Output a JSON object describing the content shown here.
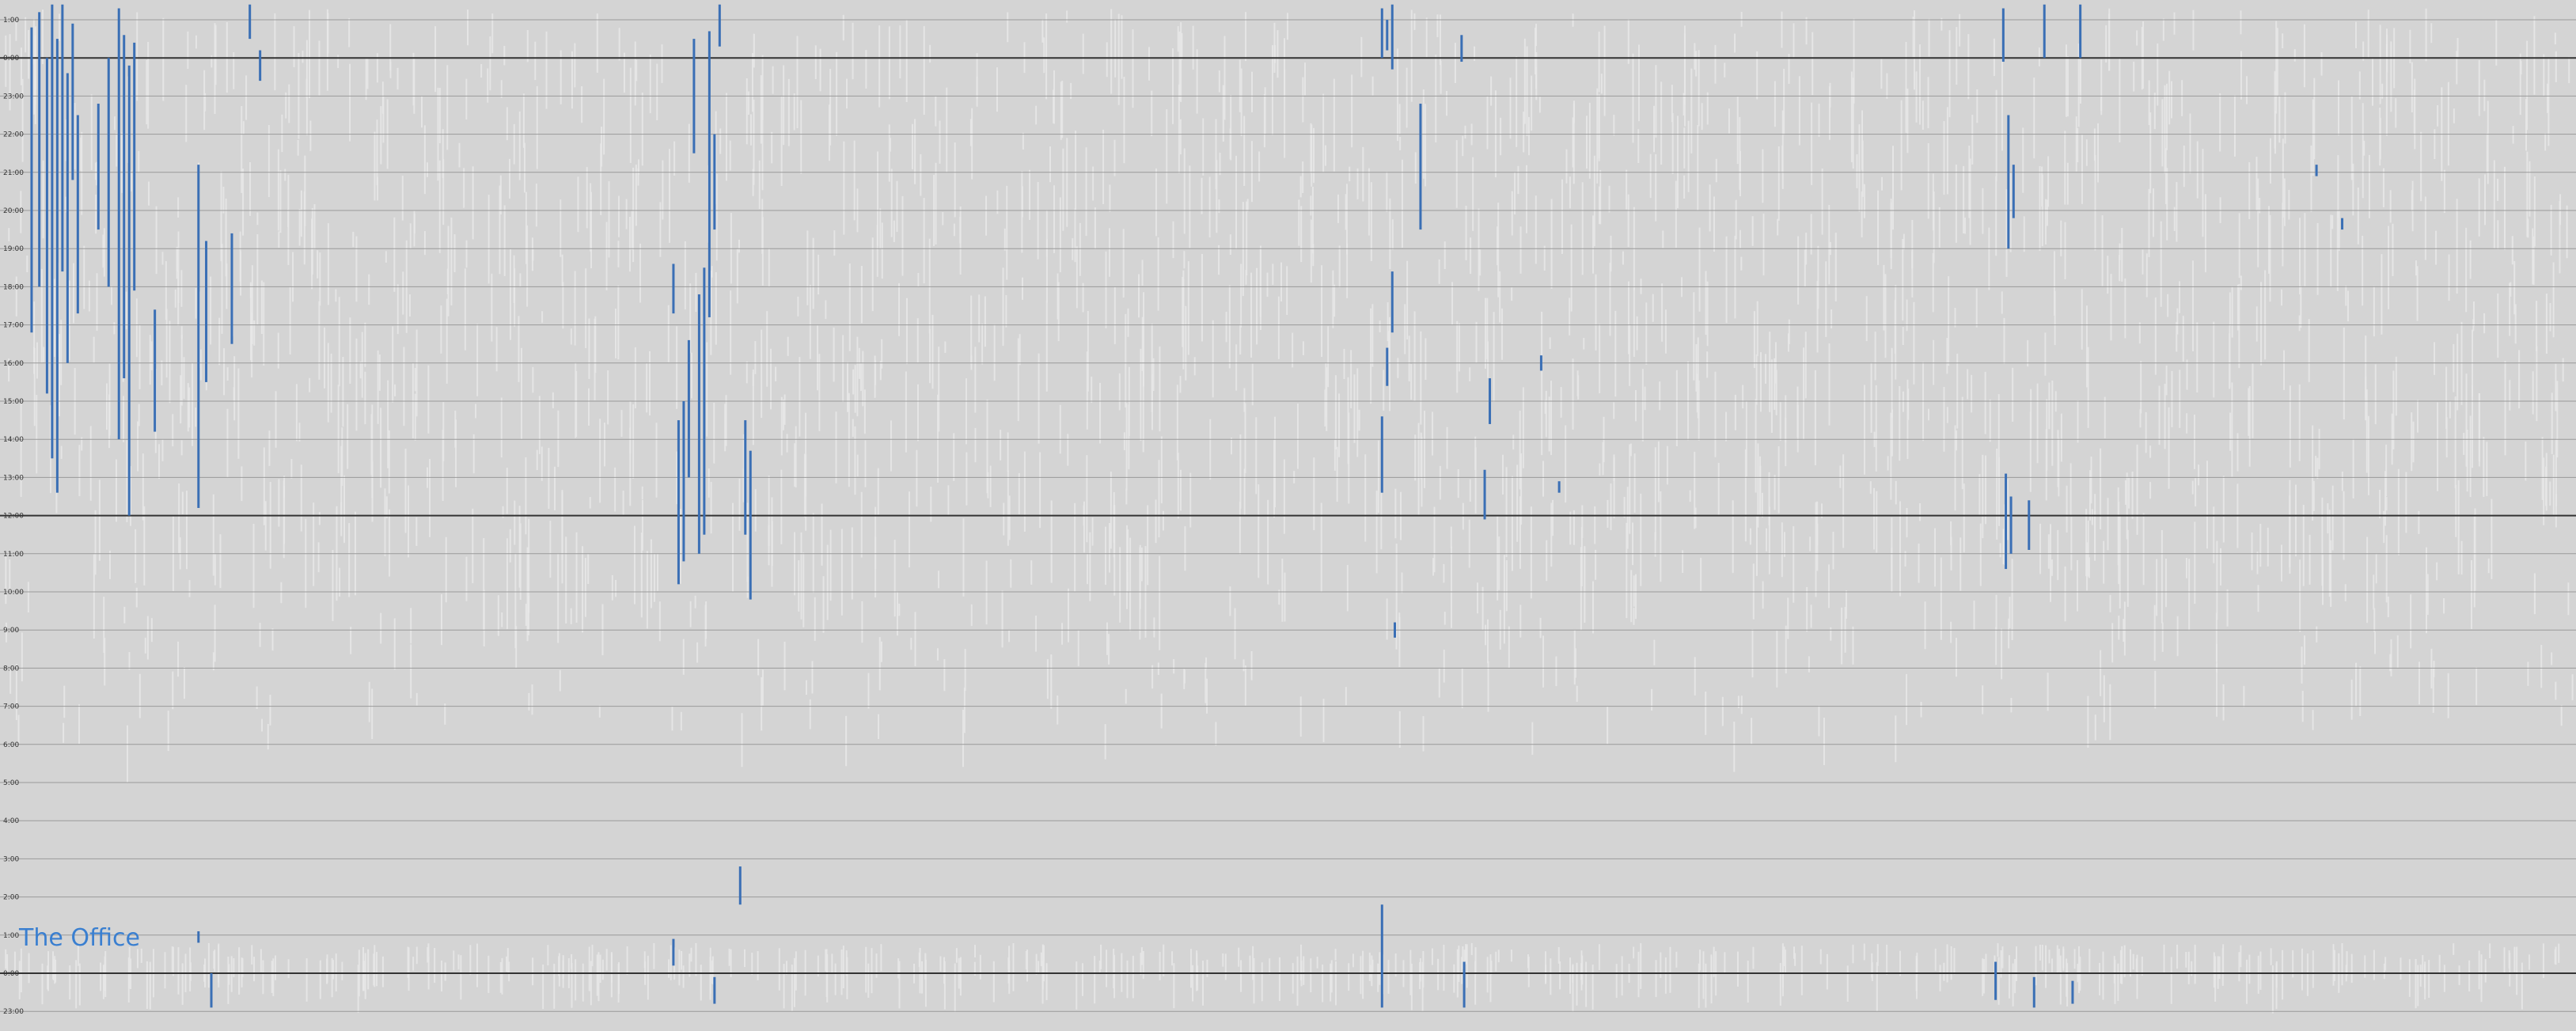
{
  "chart_data": {
    "type": "scatter",
    "title": "The Office",
    "xlabel": "",
    "ylabel": "",
    "ylim": [
      -1,
      26
    ],
    "y_ticks": [
      {
        "value": 25,
        "label": "1:00"
      },
      {
        "value": 24,
        "label": "0:00"
      },
      {
        "value": 23,
        "label": "23:00"
      },
      {
        "value": 22,
        "label": "22:00"
      },
      {
        "value": 21,
        "label": "21:00"
      },
      {
        "value": 20,
        "label": "20:00"
      },
      {
        "value": 19,
        "label": "19:00"
      },
      {
        "value": 18,
        "label": "18:00"
      },
      {
        "value": 17,
        "label": "17:00"
      },
      {
        "value": 16,
        "label": "16:00"
      },
      {
        "value": 15,
        "label": "15:00"
      },
      {
        "value": 14,
        "label": "14:00"
      },
      {
        "value": 13,
        "label": "13:00"
      },
      {
        "value": 12,
        "label": "12:00"
      },
      {
        "value": 11,
        "label": "11:00"
      },
      {
        "value": 10,
        "label": "10:00"
      },
      {
        "value": 9,
        "label": "9:00"
      },
      {
        "value": 8,
        "label": "8:00"
      },
      {
        "value": 7,
        "label": "7:00"
      },
      {
        "value": 6,
        "label": "6:00"
      },
      {
        "value": 5,
        "label": "5:00"
      },
      {
        "value": 4,
        "label": "4:00"
      },
      {
        "value": 3,
        "label": "3:00"
      },
      {
        "value": 2,
        "label": "2:00"
      },
      {
        "value": 1,
        "label": "1:00"
      },
      {
        "value": 0,
        "label": "0:00"
      },
      {
        "value": -1,
        "label": "23:00"
      }
    ],
    "major_lines": [
      24,
      12,
      0
    ],
    "grid": true,
    "colors": {
      "background": "#d4d4d4",
      "gridline": "#9a9a9a",
      "major": "#333333",
      "other": "#e8e8e8",
      "highlight": "#3a6fb5",
      "title": "#3a7fd0"
    },
    "series": [
      {
        "name": "The Office",
        "color": "#3a6fb5",
        "spans": [
          {
            "x": 0.01,
            "y1": 24.8,
            "y2": 16.8
          },
          {
            "x": 0.013,
            "y1": 25.2,
            "y2": 18.0
          },
          {
            "x": 0.016,
            "y1": 24.0,
            "y2": 15.2
          },
          {
            "x": 0.018,
            "y1": 25.4,
            "y2": 13.5
          },
          {
            "x": 0.02,
            "y1": 24.5,
            "y2": 12.6
          },
          {
            "x": 0.022,
            "y1": 25.4,
            "y2": 18.4
          },
          {
            "x": 0.024,
            "y1": 23.6,
            "y2": 16.0
          },
          {
            "x": 0.026,
            "y1": 24.9,
            "y2": 20.8
          },
          {
            "x": 0.028,
            "y1": 22.5,
            "y2": 17.3
          },
          {
            "x": 0.036,
            "y1": 22.8,
            "y2": 19.5
          },
          {
            "x": 0.04,
            "y1": 24.0,
            "y2": 18.0
          },
          {
            "x": 0.044,
            "y1": 25.3,
            "y2": 14.0
          },
          {
            "x": 0.046,
            "y1": 24.6,
            "y2": 15.6
          },
          {
            "x": 0.048,
            "y1": 23.8,
            "y2": 12.0
          },
          {
            "x": 0.05,
            "y1": 24.4,
            "y2": 17.9
          },
          {
            "x": 0.058,
            "y1": 17.4,
            "y2": 14.2
          },
          {
            "x": 0.075,
            "y1": 21.2,
            "y2": 12.2
          },
          {
            "x": 0.078,
            "y1": 19.2,
            "y2": 15.5
          },
          {
            "x": 0.088,
            "y1": 19.4,
            "y2": 16.5
          },
          {
            "x": 0.095,
            "y1": 25.4,
            "y2": 24.5
          },
          {
            "x": 0.099,
            "y1": 24.2,
            "y2": 23.4
          },
          {
            "x": 0.26,
            "y1": 18.6,
            "y2": 17.3
          },
          {
            "x": 0.262,
            "y1": 14.5,
            "y2": 10.2
          },
          {
            "x": 0.264,
            "y1": 15.0,
            "y2": 10.8
          },
          {
            "x": 0.266,
            "y1": 16.6,
            "y2": 13.0
          },
          {
            "x": 0.268,
            "y1": 24.5,
            "y2": 21.5
          },
          {
            "x": 0.27,
            "y1": 17.8,
            "y2": 11.0
          },
          {
            "x": 0.272,
            "y1": 18.5,
            "y2": 11.5
          },
          {
            "x": 0.274,
            "y1": 24.7,
            "y2": 17.2
          },
          {
            "x": 0.276,
            "y1": 22.0,
            "y2": 19.5
          },
          {
            "x": 0.278,
            "y1": 25.4,
            "y2": 24.3
          },
          {
            "x": 0.288,
            "y1": 14.5,
            "y2": 11.5
          },
          {
            "x": 0.29,
            "y1": 13.7,
            "y2": 9.8
          },
          {
            "x": 0.536,
            "y1": 25.3,
            "y2": 24.0
          },
          {
            "x": 0.538,
            "y1": 25.0,
            "y2": 24.2
          },
          {
            "x": 0.54,
            "y1": 25.4,
            "y2": 23.7
          },
          {
            "x": 0.536,
            "y1": 14.6,
            "y2": 12.6
          },
          {
            "x": 0.538,
            "y1": 16.4,
            "y2": 15.4
          },
          {
            "x": 0.54,
            "y1": 18.4,
            "y2": 16.8
          },
          {
            "x": 0.541,
            "y1": 9.2,
            "y2": 8.8
          },
          {
            "x": 0.551,
            "y1": 22.8,
            "y2": 19.5
          },
          {
            "x": 0.567,
            "y1": 24.6,
            "y2": 23.9
          },
          {
            "x": 0.576,
            "y1": 13.2,
            "y2": 11.9
          },
          {
            "x": 0.578,
            "y1": 15.6,
            "y2": 14.4
          },
          {
            "x": 0.598,
            "y1": 16.2,
            "y2": 15.8
          },
          {
            "x": 0.605,
            "y1": 12.9,
            "y2": 12.6
          },
          {
            "x": 0.778,
            "y1": 25.3,
            "y2": 23.9
          },
          {
            "x": 0.78,
            "y1": 22.5,
            "y2": 19.0
          },
          {
            "x": 0.782,
            "y1": 21.2,
            "y2": 19.8
          },
          {
            "x": 0.779,
            "y1": 13.1,
            "y2": 10.6
          },
          {
            "x": 0.781,
            "y1": 12.5,
            "y2": 11.0
          },
          {
            "x": 0.788,
            "y1": 12.4,
            "y2": 11.1
          },
          {
            "x": 0.794,
            "y1": 25.4,
            "y2": 24.0
          },
          {
            "x": 0.808,
            "y1": 25.4,
            "y2": 24.0
          },
          {
            "x": 0.9,
            "y1": 21.2,
            "y2": 20.9
          },
          {
            "x": 0.91,
            "y1": 19.8,
            "y2": 19.5
          },
          {
            "x": 0.075,
            "y1": 1.1,
            "y2": 0.8
          },
          {
            "x": 0.08,
            "y1": 0.0,
            "y2": -0.9
          },
          {
            "x": 0.26,
            "y1": 0.9,
            "y2": 0.2
          },
          {
            "x": 0.276,
            "y1": -0.1,
            "y2": -0.8
          },
          {
            "x": 0.286,
            "y1": 2.8,
            "y2": 1.8
          },
          {
            "x": 0.536,
            "y1": 1.8,
            "y2": -0.9
          },
          {
            "x": 0.568,
            "y1": 0.3,
            "y2": -0.9
          },
          {
            "x": 0.775,
            "y1": 0.3,
            "y2": -0.7
          },
          {
            "x": 0.79,
            "y1": -0.1,
            "y2": -0.9
          },
          {
            "x": 0.805,
            "y1": -0.2,
            "y2": -0.8
          }
        ]
      },
      {
        "name": "",
        "color": "#e8e8e8",
        "count": 2600,
        "seed": 7
      }
    ]
  }
}
